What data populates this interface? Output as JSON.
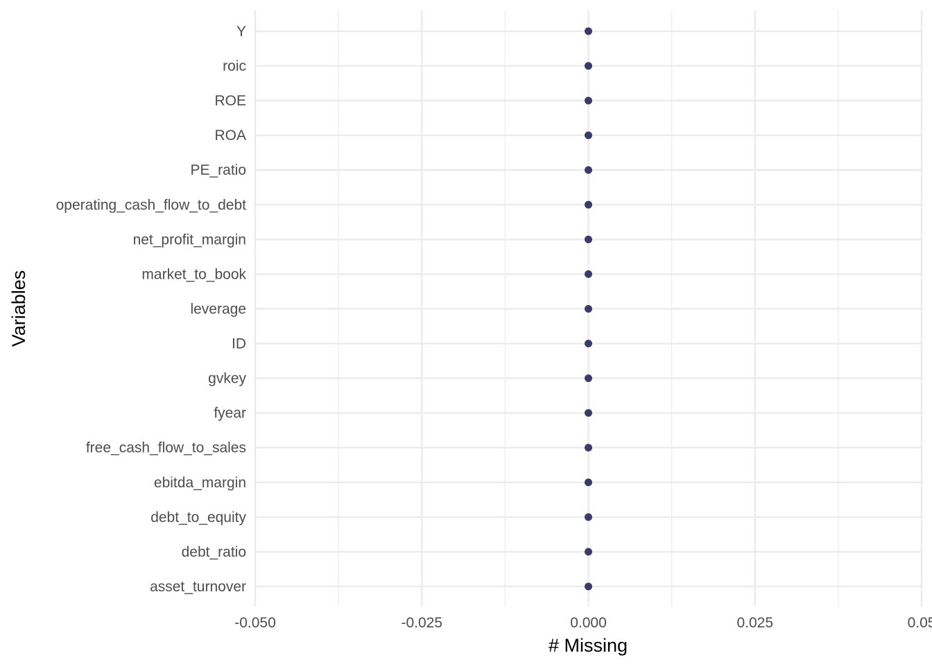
{
  "chart_data": {
    "type": "scatter",
    "title": "",
    "xlabel": "# Missing",
    "ylabel": "Variables",
    "xlim": [
      -0.05,
      0.05
    ],
    "x_ticks": [
      -0.05,
      -0.025,
      0,
      0.025,
      0.05
    ],
    "x_tick_labels": [
      "-0.050",
      "-0.025",
      "0.000",
      "0.025",
      "0.05"
    ],
    "grid": true,
    "legend": "none",
    "categories": [
      "Y",
      "roic",
      "ROE",
      "ROA",
      "PE_ratio",
      "operating_cash_flow_to_debt",
      "net_profit_margin",
      "market_to_book",
      "leverage",
      "ID",
      "gvkey",
      "fyear",
      "free_cash_flow_to_sales",
      "ebitda_margin",
      "debt_to_equity",
      "debt_ratio",
      "asset_turnover"
    ],
    "values": [
      0,
      0,
      0,
      0,
      0,
      0,
      0,
      0,
      0,
      0,
      0,
      0,
      0,
      0,
      0,
      0,
      0
    ],
    "point_color": "#3b3b6b",
    "grid_color": "#ebebeb"
  }
}
